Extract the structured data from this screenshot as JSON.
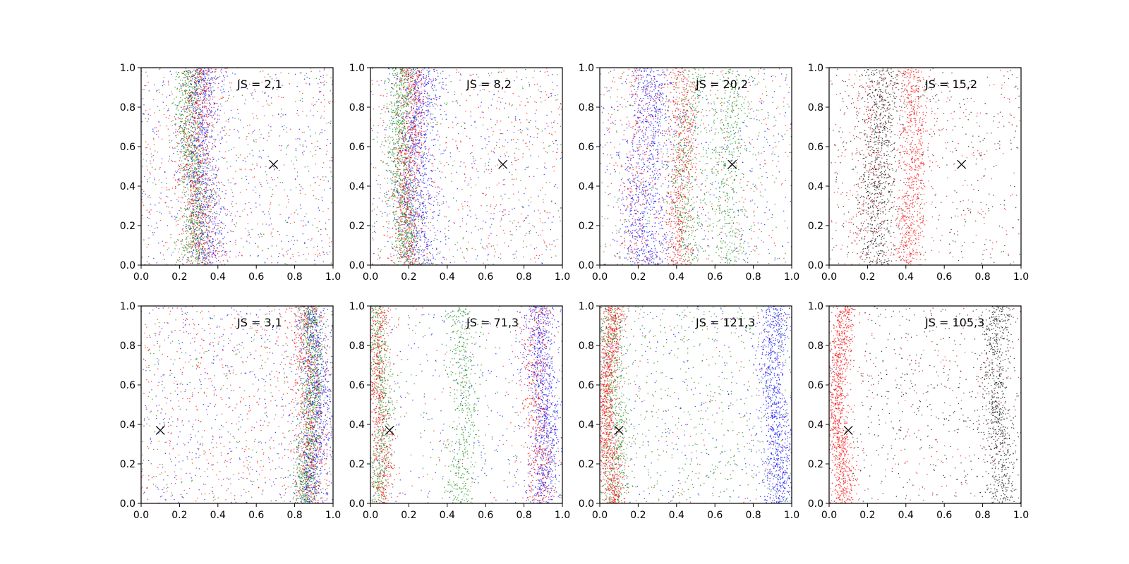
{
  "chart_data": [
    {
      "type": "scatter",
      "title": "",
      "xlabel": "",
      "ylabel": "",
      "xlim": [
        0,
        1
      ],
      "ylim": [
        0,
        1
      ],
      "xticks": [
        "0.0",
        "0.2",
        "0.4",
        "0.6",
        "0.8",
        "1.0"
      ],
      "yticks": [
        "0.0",
        "0.2",
        "0.4",
        "0.6",
        "0.8",
        "1.0"
      ],
      "annotation": "JS = 2,1",
      "marker": {
        "x": 0.69,
        "y": 0.51
      },
      "series": [
        {
          "color": "#008000",
          "bands": [
            {
              "center": 0.27,
              "width": 0.04,
              "weight": 0.8
            },
            {
              "center": 0.5,
              "width": 1,
              "weight": 0.2
            }
          ]
        },
        {
          "color": "#0000ff",
          "bands": [
            {
              "center": 0.33,
              "width": 0.05,
              "weight": 0.7
            },
            {
              "center": 0.5,
              "width": 1,
              "weight": 0.3
            }
          ]
        },
        {
          "color": "#ff0000",
          "bands": [
            {
              "center": 0.3,
              "width": 0.05,
              "weight": 0.6
            },
            {
              "center": 0.5,
              "width": 1,
              "weight": 0.4
            }
          ]
        }
      ]
    },
    {
      "type": "scatter",
      "title": "",
      "xlabel": "",
      "ylabel": "",
      "xlim": [
        0,
        1
      ],
      "ylim": [
        0,
        1
      ],
      "xticks": [
        "0.0",
        "0.2",
        "0.4",
        "0.6",
        "0.8",
        "1.0"
      ],
      "yticks": [
        "0.0",
        "0.2",
        "0.4",
        "0.6",
        "0.8",
        "1.0"
      ],
      "annotation": "JS = 8,2",
      "marker": {
        "x": 0.69,
        "y": 0.51
      },
      "series": [
        {
          "color": "#008000",
          "bands": [
            {
              "center": 0.17,
              "width": 0.04,
              "weight": 0.8
            },
            {
              "center": 0.5,
              "width": 1,
              "weight": 0.2
            }
          ]
        },
        {
          "color": "#0000ff",
          "bands": [
            {
              "center": 0.25,
              "width": 0.05,
              "weight": 0.7
            },
            {
              "center": 0.5,
              "width": 1,
              "weight": 0.3
            }
          ]
        },
        {
          "color": "#ff0000",
          "bands": [
            {
              "center": 0.2,
              "width": 0.04,
              "weight": 0.6
            },
            {
              "center": 0.5,
              "width": 1,
              "weight": 0.4
            }
          ]
        }
      ]
    },
    {
      "type": "scatter",
      "title": "",
      "xlabel": "",
      "ylabel": "",
      "xlim": [
        0,
        1
      ],
      "ylim": [
        0,
        1
      ],
      "xticks": [
        "0.0",
        "0.2",
        "0.4",
        "0.6",
        "0.8",
        "1.0"
      ],
      "yticks": [
        "0.0",
        "0.2",
        "0.4",
        "0.6",
        "0.8",
        "1.0"
      ],
      "annotation": "JS = 20,2",
      "marker": {
        "x": 0.69,
        "y": 0.51
      },
      "series": [
        {
          "color": "#008000",
          "bands": [
            {
              "center": 0.45,
              "width": 0.04,
              "weight": 0.4
            },
            {
              "center": 0.68,
              "width": 0.06,
              "weight": 0.4
            },
            {
              "center": 0.5,
              "width": 1,
              "weight": 0.2
            }
          ]
        },
        {
          "color": "#0000ff",
          "bands": [
            {
              "center": 0.25,
              "width": 0.06,
              "weight": 0.7
            },
            {
              "center": 0.5,
              "width": 1,
              "weight": 0.3
            }
          ]
        },
        {
          "color": "#ff0000",
          "bands": [
            {
              "center": 0.42,
              "width": 0.04,
              "weight": 0.5
            },
            {
              "center": 0.2,
              "width": 0.06,
              "weight": 0.2
            },
            {
              "center": 0.5,
              "width": 1,
              "weight": 0.3
            }
          ]
        }
      ]
    },
    {
      "type": "scatter",
      "title": "",
      "xlabel": "",
      "ylabel": "",
      "xlim": [
        0,
        1
      ],
      "ylim": [
        0,
        1
      ],
      "xticks": [
        "0.0",
        "0.2",
        "0.4",
        "0.6",
        "0.8",
        "1.0"
      ],
      "yticks": [
        "0.0",
        "0.2",
        "0.4",
        "0.6",
        "0.8",
        "1.0"
      ],
      "annotation": "JS = 15,2",
      "marker": {
        "x": 0.69,
        "y": 0.51
      },
      "series": [
        {
          "color": "#000000",
          "bands": [
            {
              "center": 0.26,
              "width": 0.05,
              "weight": 0.7
            },
            {
              "center": 0.5,
              "width": 1,
              "weight": 0.3
            }
          ]
        },
        {
          "color": "#ff0000",
          "bands": [
            {
              "center": 0.43,
              "width": 0.04,
              "weight": 0.6
            },
            {
              "center": 0.2,
              "width": 0.05,
              "weight": 0.15
            },
            {
              "center": 0.5,
              "width": 1,
              "weight": 0.25
            }
          ]
        }
      ]
    },
    {
      "type": "scatter",
      "title": "",
      "xlabel": "",
      "ylabel": "",
      "xlim": [
        0,
        1
      ],
      "ylim": [
        0,
        1
      ],
      "xticks": [
        "0.0",
        "0.2",
        "0.4",
        "0.6",
        "0.8",
        "1.0"
      ],
      "yticks": [
        "0.0",
        "0.2",
        "0.4",
        "0.6",
        "0.8",
        "1.0"
      ],
      "annotation": "JS = 3,1",
      "marker": {
        "x": 0.1,
        "y": 0.37
      },
      "series": [
        {
          "color": "#008000",
          "bands": [
            {
              "center": 0.88,
              "width": 0.03,
              "weight": 0.8
            },
            {
              "center": 0.5,
              "width": 1,
              "weight": 0.2
            }
          ]
        },
        {
          "color": "#0000ff",
          "bands": [
            {
              "center": 0.9,
              "width": 0.04,
              "weight": 0.6
            },
            {
              "center": 0.5,
              "width": 1,
              "weight": 0.4
            }
          ]
        },
        {
          "color": "#ff0000",
          "bands": [
            {
              "center": 0.87,
              "width": 0.04,
              "weight": 0.5
            },
            {
              "center": 0.5,
              "width": 1,
              "weight": 0.5
            }
          ]
        }
      ]
    },
    {
      "type": "scatter",
      "title": "",
      "xlabel": "",
      "ylabel": "",
      "xlim": [
        0,
        1
      ],
      "ylim": [
        0,
        1
      ],
      "xticks": [
        "0.0",
        "0.2",
        "0.4",
        "0.6",
        "0.8",
        "1.0"
      ],
      "yticks": [
        "0.0",
        "0.2",
        "0.4",
        "0.6",
        "0.8",
        "1.0"
      ],
      "annotation": "JS = 71,3",
      "marker": {
        "x": 0.1,
        "y": 0.37
      },
      "series": [
        {
          "color": "#008000",
          "bands": [
            {
              "center": 0.05,
              "width": 0.03,
              "weight": 0.5
            },
            {
              "center": 0.48,
              "width": 0.04,
              "weight": 0.4
            },
            {
              "center": 0.5,
              "width": 1,
              "weight": 0.1
            }
          ]
        },
        {
          "color": "#0000ff",
          "bands": [
            {
              "center": 0.9,
              "width": 0.04,
              "weight": 0.8
            },
            {
              "center": 0.5,
              "width": 1,
              "weight": 0.2
            }
          ]
        },
        {
          "color": "#ff0000",
          "bands": [
            {
              "center": 0.05,
              "width": 0.03,
              "weight": 0.5
            },
            {
              "center": 0.87,
              "width": 0.04,
              "weight": 0.4
            },
            {
              "center": 0.5,
              "width": 1,
              "weight": 0.1
            }
          ]
        }
      ]
    },
    {
      "type": "scatter",
      "title": "",
      "xlabel": "",
      "ylabel": "",
      "xlim": [
        0,
        1
      ],
      "ylim": [
        0,
        1
      ],
      "xticks": [
        "0.0",
        "0.2",
        "0.4",
        "0.6",
        "0.8",
        "1.0"
      ],
      "yticks": [
        "0.0",
        "0.2",
        "0.4",
        "0.6",
        "0.8",
        "1.0"
      ],
      "annotation": "JS = 121,3",
      "marker": {
        "x": 0.1,
        "y": 0.37
      },
      "series": [
        {
          "color": "#008000",
          "bands": [
            {
              "center": 0.07,
              "width": 0.04,
              "weight": 0.5
            },
            {
              "center": 0.5,
              "width": 1,
              "weight": 0.5
            }
          ]
        },
        {
          "color": "#0000ff",
          "bands": [
            {
              "center": 0.92,
              "width": 0.04,
              "weight": 0.8
            },
            {
              "center": 0.5,
              "width": 1,
              "weight": 0.2
            }
          ]
        },
        {
          "color": "#ff0000",
          "bands": [
            {
              "center": 0.05,
              "width": 0.03,
              "weight": 0.9
            },
            {
              "center": 0.5,
              "width": 1,
              "weight": 0.1
            }
          ]
        }
      ]
    },
    {
      "type": "scatter",
      "title": "",
      "xlabel": "",
      "ylabel": "",
      "xlim": [
        0,
        1
      ],
      "ylim": [
        0,
        1
      ],
      "xticks": [
        "0.0",
        "0.2",
        "0.4",
        "0.6",
        "0.8",
        "1.0"
      ],
      "yticks": [
        "0.0",
        "0.2",
        "0.4",
        "0.6",
        "0.8",
        "1.0"
      ],
      "annotation": "JS = 105,3",
      "marker": {
        "x": 0.1,
        "y": 0.37
      },
      "series": [
        {
          "color": "#000000",
          "bands": [
            {
              "center": 0.88,
              "width": 0.04,
              "weight": 0.6
            },
            {
              "center": 0.5,
              "width": 1,
              "weight": 0.4
            }
          ]
        },
        {
          "color": "#ff0000",
          "bands": [
            {
              "center": 0.06,
              "width": 0.03,
              "weight": 0.85
            },
            {
              "center": 0.5,
              "width": 1,
              "weight": 0.15
            }
          ]
        }
      ]
    }
  ]
}
